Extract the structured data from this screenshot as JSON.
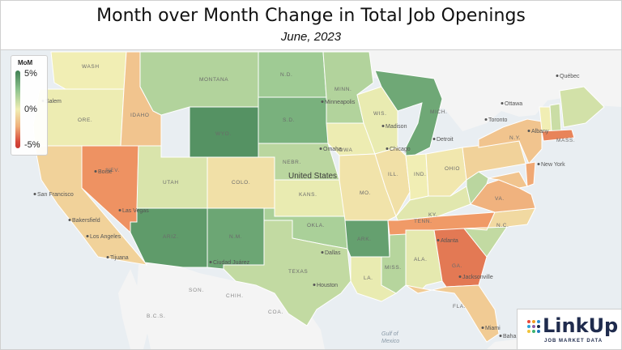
{
  "header": {
    "title": "Month over Month Change in Total Job Openings",
    "subtitle": "June, 2023"
  },
  "legend": {
    "title": "MoM",
    "max_label": "5%",
    "mid_label": "0%",
    "min_label": "-5%",
    "colors": [
      "#3f7f52",
      "#8fc48e",
      "#f1eeb4",
      "#f0b07a",
      "#c73a33"
    ]
  },
  "states": [
    {
      "id": "wash",
      "label": "WASH",
      "change": 0.0
    },
    {
      "id": "ore",
      "label": "ORE.",
      "change": 0.1
    },
    {
      "id": "calif",
      "label": "",
      "change": -0.8
    },
    {
      "id": "idaho",
      "label": "IDAHO",
      "change": -1.2
    },
    {
      "id": "nev",
      "label": "NEV.",
      "change": -2.6
    },
    {
      "id": "mont",
      "label": "MONTANA",
      "change": 1.6
    },
    {
      "id": "wyo",
      "label": "WYO.",
      "change": 4.3
    },
    {
      "id": "utah",
      "label": "UTAH",
      "change": 0.6
    },
    {
      "id": "colo",
      "label": "COLO.",
      "change": -0.4
    },
    {
      "id": "ariz",
      "label": "ARIZ.",
      "change": 4.0
    },
    {
      "id": "nm",
      "label": "N.M.",
      "change": 3.6
    },
    {
      "id": "nd",
      "label": "N.D.",
      "change": 2.1
    },
    {
      "id": "sd",
      "label": "S.D.",
      "change": 3.2
    },
    {
      "id": "nebr",
      "label": "NEBR.",
      "change": 1.4
    },
    {
      "id": "kans",
      "label": "KANS.",
      "change": 0.2
    },
    {
      "id": "okla",
      "label": "OKLA.",
      "change": 1.8
    },
    {
      "id": "texas",
      "label": "TEXAS",
      "change": 1.2
    },
    {
      "id": "minn",
      "label": "MINN.",
      "change": 1.6
    },
    {
      "id": "iowa",
      "label": "IOWA",
      "change": 0.1
    },
    {
      "id": "mo",
      "label": "MO.",
      "change": -0.3
    },
    {
      "id": "ark",
      "label": "ARK.",
      "change": 3.8
    },
    {
      "id": "la",
      "label": "LA.",
      "change": 0.2
    },
    {
      "id": "wis",
      "label": "WIS.",
      "change": 0.2
    },
    {
      "id": "ill",
      "label": "ILL.",
      "change": -0.4
    },
    {
      "id": "miss",
      "label": "MISS.",
      "change": 1.5
    },
    {
      "id": "mich",
      "label": "MICH.",
      "change": 3.5
    },
    {
      "id": "ind",
      "label": "IND.",
      "change": 0.0
    },
    {
      "id": "ohio",
      "label": "OHIO",
      "change": -0.2
    },
    {
      "id": "ky",
      "label": "KY.",
      "change": 0.4
    },
    {
      "id": "tenn",
      "label": "TENN.",
      "change": -2.4
    },
    {
      "id": "ala",
      "label": "ALA.",
      "change": 0.3
    },
    {
      "id": "ga",
      "label": "GA.",
      "change": -3.3
    },
    {
      "id": "fla",
      "label": "FLA.",
      "change": -1.0
    },
    {
      "id": "sc",
      "label": "",
      "change": 1.2
    },
    {
      "id": "nc",
      "label": "N.C.",
      "change": -0.6
    },
    {
      "id": "va",
      "label": "VA.",
      "change": -1.7
    },
    {
      "id": "wva",
      "label": "",
      "change": 1.4
    },
    {
      "id": "pa",
      "label": "",
      "change": -0.8
    },
    {
      "id": "ny",
      "label": "N.Y.",
      "change": -1.2
    },
    {
      "id": "vt",
      "label": "",
      "change": 0.0
    },
    {
      "id": "nh",
      "label": "",
      "change": 1.0
    },
    {
      "id": "maine",
      "label": "",
      "change": 0.8
    },
    {
      "id": "mass",
      "label": "MASS.",
      "change": -3.0
    },
    {
      "id": "nj",
      "label": "",
      "change": -2.0
    },
    {
      "id": "md",
      "label": "",
      "change": -1.2
    }
  ],
  "places": {
    "salem": "Salem",
    "boise": "Boise",
    "san_francisco": "San Francisco",
    "las_vegas": "Las Vegas",
    "bakersfield": "Bakersfield",
    "los_angeles": "Los Angeles",
    "tijuana": "Tijuana",
    "ciudad_juarez": "Ciudad Juárez",
    "dallas": "Dallas",
    "houston": "Houston",
    "minneapolis": "Minneapolis",
    "madison": "Madison",
    "chicago": "Chicago",
    "omaha": "Omaha",
    "detroit": "Detroit",
    "toronto": "Toronto",
    "ottawa": "Ottawa",
    "quebec": "Québec",
    "albany": "Albany",
    "new_york": "New York",
    "atlanta": "Atlanta",
    "jacksonville": "Jacksonville",
    "miami": "Miami",
    "united_states": "United States",
    "son": "SON.",
    "chih": "CHIH.",
    "coa": "COA.",
    "bc": "B.C.S.",
    "gulf": "Gulf of\nMexico",
    "baha": "Baha"
  },
  "logo": {
    "name": "LinkUp",
    "tagline": "JOB MARKET DATA",
    "dot_colors": [
      "#e8483b",
      "#f39c1f",
      "#2e8fd1",
      "#27a3d8",
      "#8c59a5",
      "#1f2b4d",
      "#f0c43a",
      "#3bb273",
      "#1f78c1"
    ]
  }
}
